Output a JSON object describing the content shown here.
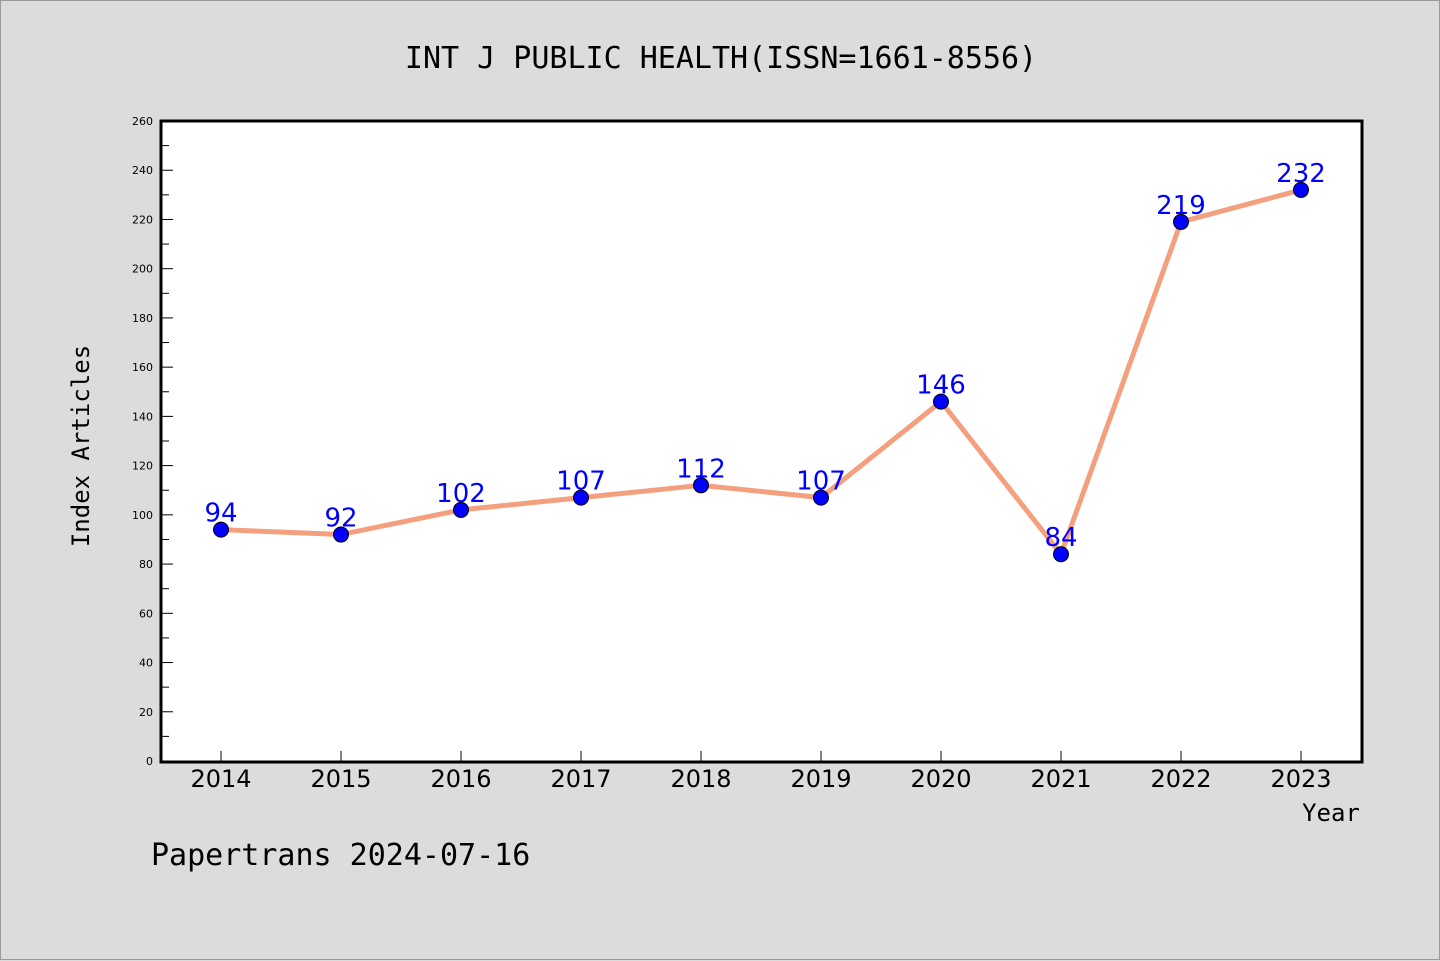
{
  "chart_data": {
    "type": "line",
    "title": "INT J PUBLIC HEALTH(ISSN=1661-8556)",
    "xlabel": "Year",
    "ylabel": "Index Articles",
    "categories": [
      "2014",
      "2015",
      "2016",
      "2017",
      "2018",
      "2019",
      "2020",
      "2021",
      "2022",
      "2023"
    ],
    "series": [
      {
        "values": [
          94,
          92,
          102,
          107,
          112,
          107,
          146,
          84,
          219,
          232
        ]
      }
    ],
    "ylim": [
      0,
      260
    ],
    "yticks": [
      0,
      20,
      40,
      60,
      80,
      100,
      120,
      140,
      160,
      180,
      200,
      220,
      240,
      260
    ],
    "grid": false,
    "line_color": "#f4a07e",
    "marker_color": "#0000ff",
    "label_color": "#0000ff"
  },
  "footer": {
    "text": "Papertrans 2024-07-16"
  }
}
